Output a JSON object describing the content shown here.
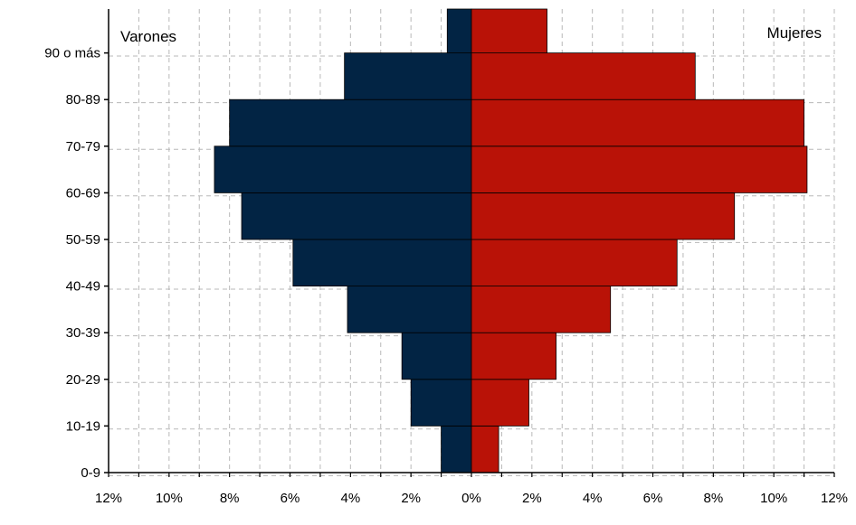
{
  "chart_data": {
    "type": "bar",
    "orientation": "horizontal",
    "layout": "population-pyramid",
    "categories": [
      "0-9",
      "10-19",
      "20-29",
      "30-39",
      "40-49",
      "50-59",
      "60-69",
      "70-79",
      "80-89",
      "90 o más"
    ],
    "series": [
      {
        "name": "Varones",
        "values": [
          1.0,
          2.0,
          2.3,
          4.1,
          5.9,
          7.6,
          8.5,
          8.0,
          4.2,
          0.8
        ],
        "color": "#022444"
      },
      {
        "name": "Mujeres",
        "values": [
          0.9,
          1.9,
          2.8,
          4.6,
          6.8,
          8.7,
          11.1,
          11.0,
          7.4,
          2.5
        ],
        "color": "#b91207"
      }
    ],
    "xlim": [
      -12,
      12
    ],
    "xticks": [
      "12%",
      "10%",
      "8%",
      "6%",
      "4%",
      "2%",
      "0%",
      "2%",
      "4%",
      "6%",
      "8%",
      "10%",
      "12%"
    ],
    "grid": true,
    "side_labels": {
      "left": "Varones",
      "right": "Mujeres"
    }
  }
}
